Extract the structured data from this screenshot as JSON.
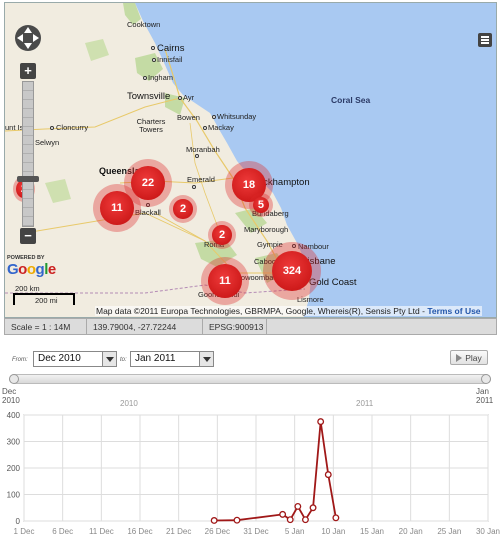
{
  "map": {
    "cities": [
      {
        "name": "Cooktown",
        "cls": "",
        "dot": false
      },
      {
        "name": "Cairns",
        "cls": "big-ish",
        "dot": true
      },
      {
        "name": "Innisfail",
        "cls": "",
        "dot": true
      },
      {
        "name": "Ingham",
        "cls": "",
        "dot": true
      },
      {
        "name": "Townsville",
        "cls": "big-ish",
        "dot": true
      },
      {
        "name": "Ayr",
        "cls": "",
        "dot": true
      },
      {
        "name": "Bowen",
        "cls": "",
        "dot": true
      },
      {
        "name": "Whitsunday",
        "cls": "",
        "dot": true
      },
      {
        "name": "Charters Towers",
        "cls": "",
        "dot": false
      },
      {
        "name": "Mackay",
        "cls": "",
        "dot": true
      },
      {
        "name": "unt Isa",
        "cls": "",
        "dot": false
      },
      {
        "name": "Cloncurry",
        "cls": "",
        "dot": true
      },
      {
        "name": "Selwyn",
        "cls": "",
        "dot": false
      },
      {
        "name": "Moranbah",
        "cls": "",
        "dot": true
      },
      {
        "name": "Queensland",
        "cls": "big",
        "dot": false
      },
      {
        "name": "Emerald",
        "cls": "",
        "dot": true
      },
      {
        "name": "Blackall",
        "cls": "",
        "dot": true
      },
      {
        "name": "Rockhampton",
        "cls": "big-ish",
        "dot": false
      },
      {
        "name": "Bundaberg",
        "cls": "",
        "dot": false
      },
      {
        "name": "Maryborough",
        "cls": "",
        "dot": false
      },
      {
        "name": "Gympie",
        "cls": "",
        "dot": false
      },
      {
        "name": "Nambour",
        "cls": "",
        "dot": true
      },
      {
        "name": "Roma",
        "cls": "",
        "dot": false
      },
      {
        "name": "Caboolture",
        "cls": "",
        "dot": false
      },
      {
        "name": "Brisbane",
        "cls": "big-ish",
        "dot": false
      },
      {
        "name": "Toowoomba",
        "cls": "",
        "dot": false
      },
      {
        "name": "Gold Coast",
        "cls": "big-ish",
        "dot": true
      },
      {
        "name": "Goondiwindi",
        "cls": "",
        "dot": false
      },
      {
        "name": "Lismore",
        "cls": "",
        "dot": false
      }
    ],
    "sea_label": "Coral Sea",
    "clusters": [
      {
        "count": "2"
      },
      {
        "count": "22"
      },
      {
        "count": "11"
      },
      {
        "count": "2"
      },
      {
        "count": "18"
      },
      {
        "count": "5"
      },
      {
        "count": "2"
      },
      {
        "count": "11"
      },
      {
        "count": "324"
      }
    ],
    "powered_by": "POWERED BY",
    "google": "Google",
    "scale_km": "200 km",
    "scale_mi": "200 mi",
    "attribution": "Map data ©2011 Europa Technologies, GBRMPA, Google, Whereis(R), Sensis Pty Ltd - ",
    "terms": "Terms of Use"
  },
  "statusbar": {
    "scale": "Scale = 1 : 14M",
    "coords": "139.79004, -27.72244",
    "epsg": "EPSG:900913"
  },
  "time": {
    "from_label": "From:",
    "from_value": "Dec 2010",
    "to_label": "to:",
    "to_value": "Jan 2011",
    "play_label": "Play",
    "slider_start": "Dec\n2010",
    "slider_start_line1": "Dec",
    "slider_start_line2": "2010",
    "slider_end_line1": "Jan",
    "slider_end_line2": "2011",
    "year_mid_1": "2010",
    "year_mid_2": "2011"
  },
  "chart_data": {
    "type": "line",
    "x_tick_labels": [
      "1 Dec",
      "6 Dec",
      "11 Dec",
      "16 Dec",
      "21 Dec",
      "26 Dec",
      "31 Dec",
      "5 Jan",
      "10 Jan",
      "15 Jan",
      "20 Jan",
      "25 Jan",
      "30 Jan"
    ],
    "y_ticks": [
      0,
      100,
      200,
      300,
      400
    ],
    "ylim": [
      0,
      400
    ],
    "series": [
      {
        "color": "#a01818",
        "points": [
          {
            "x": "2010-12-26",
            "y": 2
          },
          {
            "x": "2010-12-29",
            "y": 3
          },
          {
            "x": "2011-01-04",
            "y": 25
          },
          {
            "x": "2011-01-05",
            "y": 5
          },
          {
            "x": "2011-01-06",
            "y": 55
          },
          {
            "x": "2011-01-07",
            "y": 5
          },
          {
            "x": "2011-01-08",
            "y": 50
          },
          {
            "x": "2011-01-09",
            "y": 375
          },
          {
            "x": "2011-01-10",
            "y": 175
          },
          {
            "x": "2011-01-11",
            "y": 12
          }
        ]
      }
    ]
  }
}
